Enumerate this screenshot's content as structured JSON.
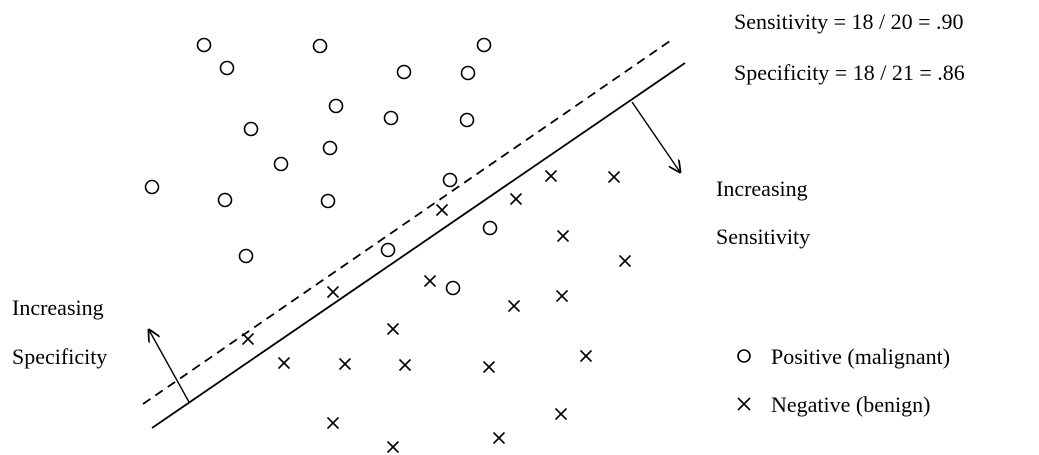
{
  "summary": {
    "sensitivity": "Sensitivity = 18 / 20 = .90",
    "specificity": "Specificity = 18 / 21 = .86"
  },
  "annotations": {
    "sensitivity_line1": "Increasing",
    "sensitivity_line2": "Sensitivity",
    "specificity_line1": "Increasing",
    "specificity_line2": "Specificity"
  },
  "legend": {
    "positive": "Positive (malignant)",
    "negative": "Negative (benign)"
  },
  "colors": {
    "ink": "#000000",
    "background": "#ffffff"
  },
  "points": {
    "positive": [
      [
        204,
        45
      ],
      [
        320,
        46
      ],
      [
        484,
        45
      ],
      [
        227,
        68
      ],
      [
        404,
        72
      ],
      [
        468,
        73
      ],
      [
        336,
        106
      ],
      [
        391,
        118
      ],
      [
        467,
        120
      ],
      [
        251,
        129
      ],
      [
        330,
        148
      ],
      [
        281,
        164
      ],
      [
        152,
        187
      ],
      [
        225,
        200
      ],
      [
        328,
        201
      ],
      [
        450,
        180
      ],
      [
        490,
        228
      ],
      [
        388,
        250
      ],
      [
        246,
        256
      ],
      [
        453,
        288
      ]
    ],
    "negative": [
      [
        551,
        176
      ],
      [
        614,
        177
      ],
      [
        516,
        199
      ],
      [
        442,
        210
      ],
      [
        563,
        236
      ],
      [
        625,
        261
      ],
      [
        430,
        281
      ],
      [
        333,
        292
      ],
      [
        562,
        296
      ],
      [
        514,
        306
      ],
      [
        248,
        339
      ],
      [
        393,
        329
      ],
      [
        284,
        363
      ],
      [
        345,
        364
      ],
      [
        405,
        365
      ],
      [
        489,
        367
      ],
      [
        586,
        356
      ],
      [
        561,
        414
      ],
      [
        333,
        423
      ],
      [
        499,
        438
      ],
      [
        393,
        447
      ]
    ]
  }
}
